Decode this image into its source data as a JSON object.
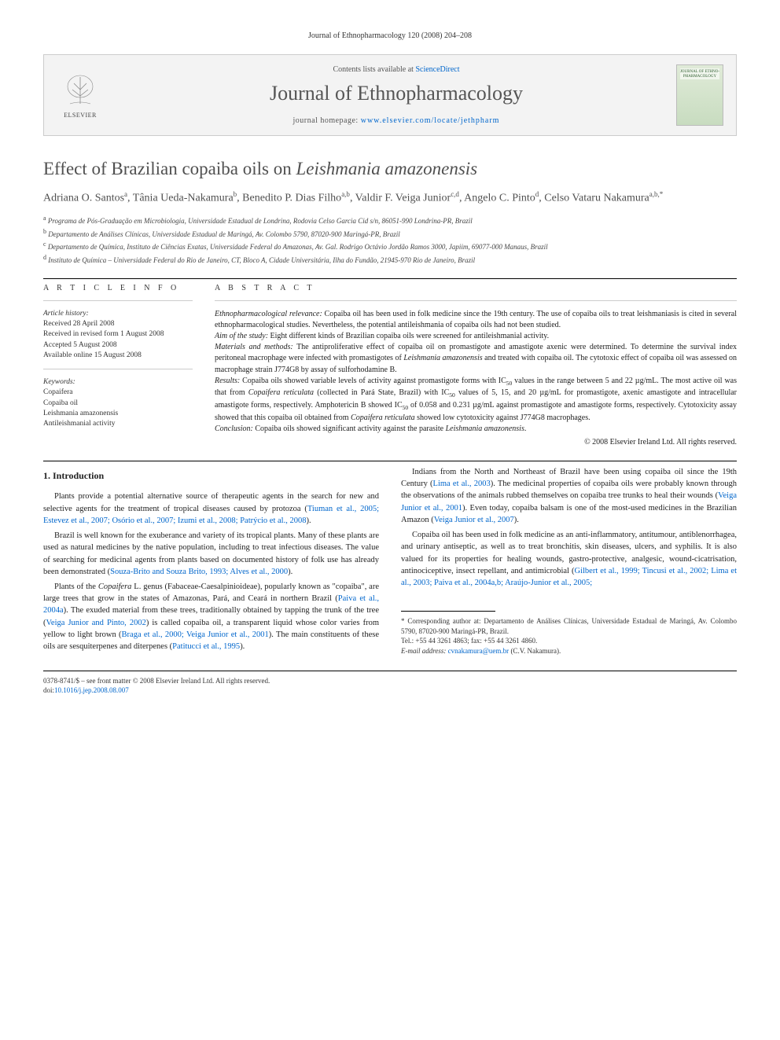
{
  "running_header": "Journal of Ethnopharmacology 120 (2008) 204–208",
  "journal_box": {
    "contents_text": "Contents lists available at ",
    "contents_link": "ScienceDirect",
    "journal_name": "Journal of Ethnopharmacology",
    "homepage_text": "journal homepage: ",
    "homepage_link": "www.elsevier.com/locate/jethpharm",
    "publisher": "ELSEVIER",
    "cover_label": "JOURNAL OF ETHNO-PHARMACOLOGY"
  },
  "title_plain": "Effect of Brazilian copaiba oils on ",
  "title_species": "Leishmania amazonensis",
  "authors_html": "Adriana O. Santos<sup>a</sup>, Tânia Ueda-Nakamura<sup>b</sup>, Benedito P. Dias Filho<sup>a,b</sup>, Valdir F. Veiga Junior<sup>c,d</sup>, Angelo C. Pinto<sup>d</sup>, Celso Vataru Nakamura<sup>a,b,*</sup>",
  "affiliations": [
    {
      "sup": "a",
      "text": "Programa de Pós-Graduação em Microbiologia, Universidade Estadual de Londrina, Rodovia Celso Garcia Cid s/n, 86051-990 Londrina-PR, Brazil"
    },
    {
      "sup": "b",
      "text": "Departamento de Análises Clínicas, Universidade Estadual de Maringá, Av. Colombo 5790, 87020-900 Maringá-PR, Brazil"
    },
    {
      "sup": "c",
      "text": "Departamento de Química, Instituto de Ciências Exatas, Universidade Federal do Amazonas, Av. Gal. Rodrigo Octávio Jordão Ramos 3000, Japiim, 69077-000 Manaus, Brazil"
    },
    {
      "sup": "d",
      "text": "Instituto de Química – Universidade Federal do Rio de Janeiro, CT, Bloco A, Cidade Universitária, Ilha do Fundão, 21945-970 Rio de Janeiro, Brazil"
    }
  ],
  "article_info": {
    "label": "A R T I C L E   I N F O",
    "history_label": "Article history:",
    "history": [
      "Received 28 April 2008",
      "Received in revised form 1 August 2008",
      "Accepted 5 August 2008",
      "Available online 15 August 2008"
    ],
    "keywords_label": "Keywords:",
    "keywords": [
      "Copaifera",
      "Copaiba oil",
      "Leishmania amazonensis",
      "Antileishmanial activity"
    ]
  },
  "abstract": {
    "label": "A B S T R A C T",
    "paragraphs": [
      {
        "lead": "Ethnopharmacological relevance:",
        "text": " Copaiba oil has been used in folk medicine since the 19th century. The use of copaiba oils to treat leishmaniasis is cited in several ethnopharmacological studies. Nevertheless, the potential antileishmania of copaiba oils had not been studied."
      },
      {
        "lead": "Aim of the study:",
        "text": " Eight different kinds of Brazilian copaiba oils were screened for antileishmanial activity."
      },
      {
        "lead": "Materials and methods:",
        "text": " The antiproliferative effect of copaiba oil on promastigote and amastigote axenic were determined. To determine the survival index peritoneal macrophage were infected with promastigotes of <span class=\"species\">Leishmania amazonensis</span> and treated with copaiba oil. The cytotoxic effect of copaiba oil was assessed on macrophage strain J774G8 by assay of sulforhodamine B."
      },
      {
        "lead": "Results:",
        "text": " Copaiba oils showed variable levels of activity against promastigote forms with IC<sub>50</sub> values in the range between 5 and 22 µg/mL. The most active oil was that from <span class=\"species\">Copaifera reticulata</span> (collected in Pará State, Brazil) with IC<sub>50</sub> values of 5, 15, and 20 µg/mL for promastigote, axenic amastigote and intracellular amastigote forms, respectively. Amphotericin B showed IC<sub>50</sub> of 0.058 and 0.231 µg/mL against promastigote and amastigote forms, respectively. Cytotoxicity assay showed that this copaiba oil obtained from <span class=\"species\">Copaifera reticulata</span> showed low cytotoxicity against J774G8 macrophages."
      },
      {
        "lead": "Conclusion:",
        "text": " Copaiba oils showed significant activity against the parasite <span class=\"species\">Leishmania amazonensis</span>."
      }
    ],
    "copyright": "© 2008 Elsevier Ireland Ltd. All rights reserved."
  },
  "body": {
    "heading": "1. Introduction",
    "paragraphs": [
      "Plants provide a potential alternative source of therapeutic agents in the search for new and selective agents for the treatment of tropical diseases caused by protozoa (<a href=\"#\">Tiuman et al., 2005; Estevez et al., 2007; Osório et al., 2007; Izumi et al., 2008; Patrýcio et al., 2008</a>).",
      "Brazil is well known for the exuberance and variety of its tropical plants. Many of these plants are used as natural medicines by the native population, including to treat infectious diseases. The value of searching for medicinal agents from plants based on documented history of folk use has already been demonstrated (<a href=\"#\">Souza-Brito and Souza Brito, 1993; Alves et al., 2000</a>).",
      "Plants of the <span class=\"species\">Copaifera</span> L. genus (Fabaceae-Caesalpinioideae), popularly known as \"copaiba\", are large trees that grow in the states of Amazonas, Pará, and Ceará in northern Brazil (<a href=\"#\">Paiva et al., 2004a</a>). The exuded material from these trees, traditionally obtained by tapping the trunk of the tree (<a href=\"#\">Veiga Junior and Pinto, 2002</a>) is called copaiba oil, a transparent liquid whose color varies from yellow to light brown (<a href=\"#\">Braga et al., 2000; Veiga Junior et al., 2001</a>). The main constituents of these oils are sesquiterpenes and diterpenes (<a href=\"#\">Patitucci et al., 1995</a>).",
      "Indians from the North and Northeast of Brazil have been using copaiba oil since the 19th Century (<a href=\"#\">Lima et al., 2003</a>). The medicinal properties of copaiba oils were probably known through the observations of the animals rubbed themselves on copaiba tree trunks to heal their wounds (<a href=\"#\">Veiga Junior et al., 2001</a>). Even today, copaiba balsam is one of the most-used medicines in the Brazilian Amazon (<a href=\"#\">Veiga Junior et al., 2007</a>).",
      "Copaiba oil has been used in folk medicine as an anti-inflammatory, antitumour, antiblenorrhagea, and urinary antiseptic, as well as to treat bronchitis, skin diseases, ulcers, and syphilis. It is also valued for its properties for healing wounds, gastro-protective, analgesic, wound-cicatrisation, antinociceptive, insect repellant, and antimicrobial (<a href=\"#\">Gilbert et al., 1999; Tincusi et al., 2002; Lima et al., 2003; Paiva et al., 2004a,b; Araújo-Junior et al., 2005;</a>"
    ]
  },
  "footnote": {
    "corr": "* Corresponding author at: Departamento de Análises Clínicas, Universidade Estadual de Maringá, Av. Colombo 5790, 87020-900 Maringá-PR, Brazil.",
    "tel": "Tel.: +55 44 3261 4863; fax: +55 44 3261 4860.",
    "email_label": "E-mail address: ",
    "email": "cvnakamura@uem.br",
    "email_suffix": " (C.V. Nakamura)."
  },
  "bottom": {
    "line1": "0378-8741/$ – see front matter © 2008 Elsevier Ireland Ltd. All rights reserved.",
    "doi_label": "doi:",
    "doi": "10.1016/j.jep.2008.08.007"
  },
  "colors": {
    "link": "#0066cc",
    "text": "#222222",
    "muted": "#555555",
    "border": "#cccccc",
    "box_bg": "#f3f3f3"
  }
}
